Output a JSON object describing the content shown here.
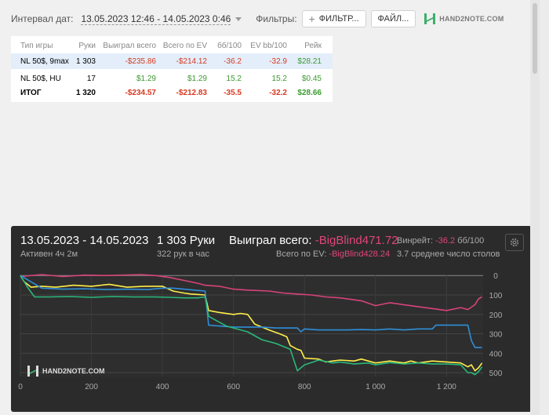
{
  "toolbar": {
    "date_label": "Интервал дат:",
    "date_range": "13.05.2023 12:46 - 14.05.2023 0:46",
    "filters_label": "Фильтры:",
    "filter_button": "ФИЛЬТР...",
    "file_button": "ФАЙЛ...",
    "logo_text": "HAND2NOTE.COM"
  },
  "table": {
    "headers": [
      "Тип игры",
      "Руки",
      "Выиграл всего",
      "Всего по EV",
      "бб/100",
      "EV bb/100",
      "Рейк"
    ],
    "rows": [
      [
        "NL 50$, 9max",
        "1 303",
        "-$235.86",
        "-$214.12",
        "-36.2",
        "-32.9",
        "$28.21"
      ],
      [
        "NL 50$, HU",
        "17",
        "$1.29",
        "$1.29",
        "15.2",
        "15.2",
        "$0.45"
      ]
    ],
    "total": [
      "ИТОГ",
      "1 320",
      "-$234.57",
      "-$212.83",
      "-35.5",
      "-32.2",
      "$28.66"
    ]
  },
  "chart_header": {
    "date_range": "13.05.2023 - 14.05.2023",
    "active": "Активен 4ч 2м",
    "hands": "1 303 Руки",
    "rate": "322 рук в час",
    "won_label": "Выиграл всего:",
    "won_value": "-BigBlind471.72",
    "ev_label": "Всего по EV:",
    "ev_value": "-BigBlind428.24",
    "winrate_label": "Винрейт:",
    "winrate_value": "-36.2",
    "winrate_unit": "бб/100",
    "tables": "3.7 среднее число столов",
    "watermark": "HAND2NOTE.COM"
  },
  "chart_data": {
    "type": "line",
    "x_ticks": [
      "0",
      "200",
      "400",
      "600",
      "800",
      "1 000",
      "1 200"
    ],
    "y_ticks": [
      "0",
      "100",
      "200",
      "300",
      "400",
      "500"
    ],
    "xlim": [
      0,
      1303
    ],
    "ylim": [
      -5,
      520
    ],
    "y_inverted": true,
    "series": [
      {
        "color": "#d8437a",
        "x": [
          0,
          60,
          120,
          180,
          240,
          300,
          340,
          380,
          420,
          460,
          500,
          520,
          560,
          600,
          640,
          700,
          740,
          780,
          820,
          860,
          900,
          960,
          1000,
          1040,
          1080,
          1120,
          1160,
          1200,
          1240,
          1260,
          1280,
          1290,
          1300
        ],
        "y": [
          5,
          -5,
          5,
          -2,
          0,
          -3,
          -5,
          0,
          10,
          25,
          40,
          50,
          55,
          70,
          75,
          80,
          90,
          95,
          100,
          110,
          115,
          130,
          155,
          140,
          150,
          160,
          170,
          180,
          165,
          175,
          150,
          120,
          110
        ]
      },
      {
        "color": "#ffee4a",
        "x": [
          0,
          10,
          30,
          60,
          100,
          150,
          200,
          250,
          300,
          350,
          400,
          430,
          460,
          480,
          520,
          530,
          560,
          600,
          620,
          640,
          660,
          700,
          730,
          750,
          760,
          780,
          790,
          800,
          840,
          860,
          880,
          900,
          940,
          960,
          1000,
          1040,
          1080,
          1100,
          1120,
          1160,
          1200,
          1240,
          1260,
          1270,
          1280,
          1290,
          1300
        ],
        "y": [
          0,
          30,
          60,
          55,
          60,
          50,
          55,
          45,
          60,
          55,
          55,
          80,
          90,
          95,
          100,
          180,
          190,
          200,
          195,
          200,
          250,
          280,
          300,
          315,
          360,
          380,
          385,
          425,
          430,
          445,
          440,
          435,
          440,
          430,
          450,
          440,
          450,
          440,
          450,
          440,
          445,
          450,
          470,
          460,
          490,
          475,
          450
        ]
      },
      {
        "color": "#2f8fd8",
        "x": [
          0,
          60,
          120,
          180,
          240,
          300,
          360,
          400,
          430,
          460,
          490,
          520,
          530,
          560,
          600,
          640,
          680,
          720,
          760,
          780,
          790,
          800,
          840,
          880,
          920,
          960,
          1000,
          1040,
          1080,
          1120,
          1160,
          1170,
          1200,
          1240,
          1260,
          1270,
          1280,
          1300
        ],
        "y": [
          0,
          65,
          70,
          68,
          72,
          70,
          72,
          65,
          65,
          70,
          75,
          80,
          255,
          260,
          265,
          265,
          265,
          270,
          270,
          270,
          290,
          275,
          280,
          280,
          280,
          278,
          280,
          275,
          280,
          275,
          275,
          255,
          255,
          255,
          255,
          335,
          370,
          370
        ]
      },
      {
        "color": "#2ab87a",
        "x": [
          0,
          20,
          40,
          80,
          140,
          200,
          260,
          320,
          380,
          420,
          460,
          500,
          520,
          530,
          560,
          580,
          600,
          640,
          680,
          720,
          760,
          780,
          800,
          840,
          880,
          900,
          940,
          980,
          1000,
          1040,
          1080,
          1120,
          1160,
          1200,
          1240,
          1260,
          1270,
          1280,
          1290,
          1300
        ],
        "y": [
          0,
          60,
          110,
          110,
          108,
          112,
          108,
          110,
          110,
          112,
          115,
          115,
          110,
          210,
          240,
          260,
          270,
          290,
          330,
          350,
          380,
          490,
          460,
          435,
          450,
          445,
          455,
          450,
          460,
          448,
          455,
          450,
          455,
          455,
          460,
          500,
          500,
          510,
          495,
          470
        ]
      }
    ]
  }
}
